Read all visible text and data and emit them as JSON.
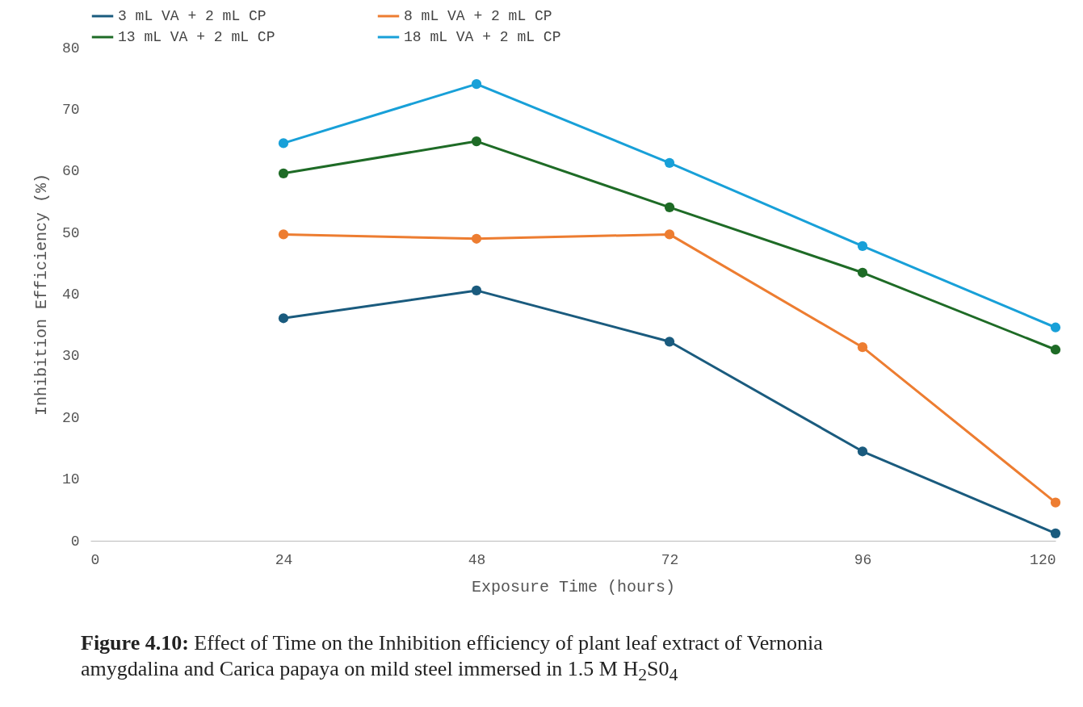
{
  "chart_data": {
    "type": "line",
    "xlabel": "Exposure Time (hours)",
    "ylabel": "Inhibition Efficiency (%)",
    "x": [
      24,
      48,
      72,
      96,
      120
    ],
    "series": [
      {
        "name": "3 mL VA + 2 mL CP",
        "color": "#1a5b7e",
        "values": [
          36.1,
          40.6,
          32.3,
          14.5,
          1.2
        ]
      },
      {
        "name": "8 mL VA + 2 mL CP",
        "color": "#ed7d31",
        "values": [
          49.7,
          49.0,
          49.7,
          31.4,
          6.2
        ]
      },
      {
        "name": "13 mL VA + 2 mL CP",
        "color": "#1e6b26",
        "values": [
          59.6,
          64.8,
          54.1,
          43.5,
          31.0
        ]
      },
      {
        "name": "18 mL VA + 2 mL CP",
        "color": "#18a0d8",
        "values": [
          64.5,
          74.1,
          61.3,
          47.8,
          34.6
        ]
      }
    ],
    "xlim": [
      0,
      120
    ],
    "xticks": [
      0,
      24,
      48,
      72,
      96,
      120
    ],
    "ylim": [
      0,
      80
    ],
    "yticks": [
      0,
      10,
      20,
      30,
      40,
      50,
      60,
      70,
      80
    ],
    "grid": false,
    "legend": "top",
    "marker": "circle",
    "line_style": "solid",
    "annotations": [
      "Figure 4.10: Effect of Time on the Inhibition efficiency of plant leaf extract of Vernonia amygdalina and Carica papaya on mild steel immersed in 1.5 M H$_{2}$S0$_{4}$"
    ]
  }
}
